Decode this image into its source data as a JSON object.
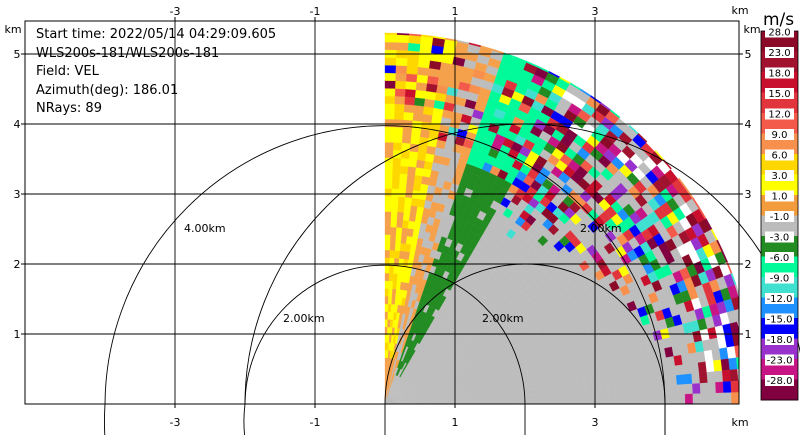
{
  "chart_data": {
    "type": "heatmap",
    "plot_kind": "PPI radar sector (velocity field)",
    "x_ticks": [
      "-3",
      "-1",
      "1",
      "3"
    ],
    "y_ticks": [
      "1",
      "2",
      "3",
      "4",
      "5"
    ],
    "x_unit": "km",
    "y_unit": "km",
    "xlim": [
      -4,
      4.5
    ],
    "ylim": [
      0,
      5.5
    ],
    "range_rings_km": [
      2,
      4
    ],
    "ring_labels": [
      "2.00km",
      "4.00km",
      "2.00km",
      "2.00km"
    ],
    "colorbar": {
      "title": "m/s",
      "labels": [
        "28.0",
        "23.0",
        "18.0",
        "15.0",
        "12.0",
        "9.0",
        "6.0",
        "3.0",
        "1.0",
        "-1.0",
        "-3.0",
        "-6.0",
        "-9.0",
        "-12.0",
        "-15.0",
        "-18.0",
        "-23.0",
        "-28.0"
      ],
      "colors": [
        "#8b0a28",
        "#a0122e",
        "#c8102e",
        "#e2343d",
        "#f45a4a",
        "#f7904d",
        "#ffd700",
        "#ffff00",
        "#f39c3d",
        "#bcbcbc",
        "#228b22",
        "#00fa9a",
        "#40e0d0",
        "#1e90ff",
        "#0000ff",
        "#9932cc",
        "#c71585",
        "#800040"
      ]
    }
  },
  "info": {
    "start_time": "Start time: 2022/05/14 04:29:09.605",
    "instrument": "WLS200s-181/WLS200s-181",
    "field": "Field: VEL",
    "azimuth": "Azimuth(deg): 186.01",
    "nrays": "NRays: 89"
  }
}
